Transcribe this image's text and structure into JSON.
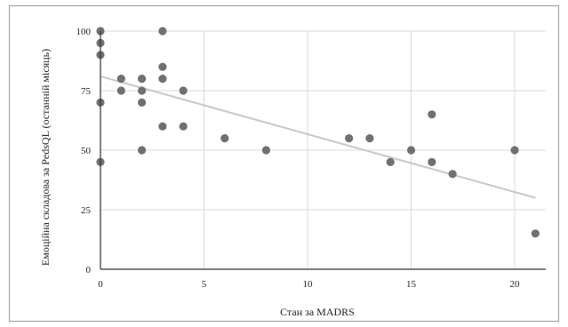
{
  "chart_data": {
    "type": "scatter",
    "title": "",
    "xlabel": "Стан за MADRS",
    "ylabel": "Емоційна складова за PedsQL (останній місяць)",
    "xlim": [
      0,
      21.5
    ],
    "ylim": [
      0,
      100
    ],
    "xticks": [
      0,
      5,
      10,
      15,
      20
    ],
    "yticks": [
      0,
      25,
      50,
      75,
      100
    ],
    "grid": true,
    "legend": "none",
    "series": [
      {
        "points": [
          [
            0,
            100
          ],
          [
            0,
            95
          ],
          [
            0,
            90
          ],
          [
            0,
            70
          ],
          [
            0,
            45
          ],
          [
            1,
            80
          ],
          [
            1,
            75
          ],
          [
            2,
            80
          ],
          [
            2,
            75
          ],
          [
            2,
            70
          ],
          [
            2,
            50
          ],
          [
            3,
            100
          ],
          [
            3,
            85
          ],
          [
            3,
            80
          ],
          [
            3,
            60
          ],
          [
            4,
            75
          ],
          [
            4,
            60
          ],
          [
            6,
            55
          ],
          [
            8,
            50
          ],
          [
            12,
            55
          ],
          [
            13,
            55
          ],
          [
            14,
            45
          ],
          [
            15,
            50
          ],
          [
            16,
            65
          ],
          [
            16,
            45
          ],
          [
            17,
            40
          ],
          [
            20,
            50
          ],
          [
            21,
            15
          ]
        ]
      }
    ],
    "trendline": {
      "x": [
        0,
        21
      ],
      "y": [
        81,
        30
      ]
    },
    "colors": {
      "points": "#707070",
      "trendline": "#c8c8c8",
      "grid": "#d9d9d9",
      "axis": "#333333"
    }
  }
}
